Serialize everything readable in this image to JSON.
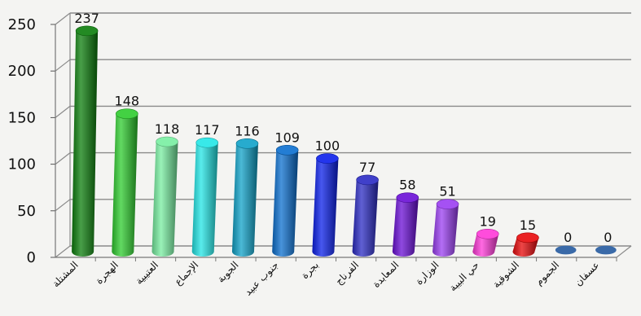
{
  "chart_data": {
    "type": "bar",
    "style": "3d-cylinder",
    "categories": [
      "المشتلة",
      "الهجرة",
      "العتيبية",
      "الإجماع",
      "الجوبة",
      "جنوب عبيد",
      "بجرة",
      "الفرناج",
      "المعابدة",
      "الوزارة",
      "حي البيبة",
      "الشوقية",
      "الجموم",
      "عسفان"
    ],
    "values": [
      237,
      148,
      118,
      117,
      116,
      109,
      100,
      77,
      58,
      51,
      19,
      15,
      0,
      0
    ],
    "data_labels": [
      "237",
      "148",
      "118",
      "117",
      "116",
      "109",
      "100",
      "77",
      "58",
      "51",
      "19",
      "15",
      "0",
      "0"
    ],
    "colors": [
      "#0b7d0b",
      "#2ecc2e",
      "#77eea0",
      "#22e6e6",
      "#0fa2c8",
      "#0b6fcf",
      "#0a1fea",
      "#2b2bc4",
      "#6a0ed6",
      "#9b3ef2",
      "#ff38d8",
      "#e8080a",
      "#3a6aa8",
      "#3a6aa8"
    ],
    "y_ticks": [
      "0",
      "50",
      "100",
      "150",
      "200",
      "250"
    ],
    "ylim": [
      0,
      250
    ],
    "grid": true,
    "title": "",
    "xlabel": "",
    "ylabel": ""
  }
}
